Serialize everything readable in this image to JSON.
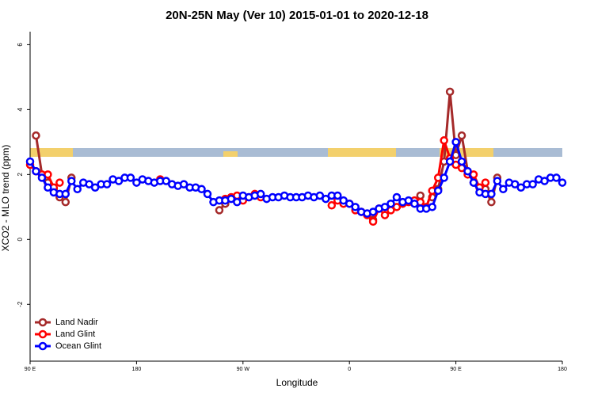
{
  "chart_data": {
    "type": "line",
    "title": "20N-25N May (Ver 10)   2015-01-01 to 2020-12-18",
    "x_label": "Longitude",
    "y_label": "XCO2 - MLO trend (ppm)",
    "xlim": [
      90,
      540
    ],
    "ylim": [
      -3.75,
      6.4
    ],
    "xticks": [
      {
        "value": 90,
        "label": "90 E"
      },
      180,
      {
        "value": 270,
        "label": "90 W"
      },
      {
        "value": 360,
        "label": "0"
      },
      {
        "value": 450,
        "label": "90 E"
      },
      {
        "value": 540,
        "label": "180"
      }
    ],
    "yticks": [
      -2,
      0,
      2,
      4,
      6
    ],
    "legend": "bottom-left",
    "x": [
      90,
      95,
      100,
      105,
      110,
      115,
      120,
      125,
      130,
      135,
      140,
      145,
      150,
      155,
      160,
      165,
      170,
      175,
      180,
      185,
      190,
      195,
      200,
      205,
      210,
      215,
      220,
      225,
      230,
      235,
      240,
      245,
      250,
      255,
      260,
      265,
      270,
      275,
      280,
      285,
      290,
      295,
      300,
      305,
      310,
      315,
      320,
      325,
      330,
      335,
      340,
      345,
      350,
      355,
      360,
      365,
      370,
      375,
      380,
      385,
      390,
      395,
      400,
      405,
      410,
      415,
      420,
      425,
      430,
      435,
      440,
      445,
      450,
      455,
      460,
      465,
      470,
      475,
      480,
      485,
      490,
      495,
      500,
      505,
      510,
      515,
      520,
      525,
      530,
      535,
      540
    ],
    "series": [
      {
        "name": "Land Nadir",
        "color": "#a52a2a",
        "values": [
          null,
          3.2,
          2.0,
          1.75,
          1.55,
          1.3,
          1.15,
          1.9,
          null,
          null,
          null,
          null,
          null,
          null,
          null,
          null,
          null,
          null,
          null,
          null,
          null,
          null,
          null,
          null,
          null,
          null,
          null,
          null,
          null,
          null,
          null,
          null,
          0.9,
          1.1,
          null,
          null,
          null,
          null,
          null,
          null,
          null,
          null,
          null,
          null,
          null,
          null,
          null,
          null,
          null,
          null,
          null,
          null,
          null,
          null,
          null,
          null,
          null,
          null,
          0.6,
          null,
          null,
          null,
          null,
          null,
          null,
          null,
          1.35,
          null,
          1.3,
          1.55,
          2.4,
          4.55,
          2.6,
          3.2,
          2.1,
          1.75,
          1.6,
          1.55,
          1.15,
          1.9,
          null,
          null,
          null,
          null,
          null,
          null,
          null,
          null,
          null,
          null,
          null
        ]
      },
      {
        "name": "Land Glint",
        "color": "#ff0000",
        "values": [
          2.3,
          2.1,
          2.0,
          2.0,
          1.6,
          1.75,
          null,
          null,
          null,
          null,
          null,
          null,
          null,
          null,
          null,
          null,
          null,
          null,
          null,
          null,
          null,
          null,
          1.85,
          null,
          null,
          null,
          null,
          null,
          null,
          null,
          null,
          null,
          null,
          1.25,
          1.3,
          1.35,
          1.2,
          1.3,
          1.4,
          1.3,
          null,
          null,
          null,
          null,
          null,
          null,
          null,
          null,
          null,
          null,
          null,
          1.05,
          1.2,
          1.1,
          1.1,
          0.9,
          0.85,
          0.75,
          0.55,
          0.95,
          0.75,
          0.9,
          1.0,
          1.1,
          1.15,
          1.2,
          1.15,
          1.0,
          1.5,
          1.9,
          3.05,
          2.5,
          2.3,
          2.2,
          2.0,
          2.0,
          1.6,
          1.75,
          null,
          null,
          null,
          null,
          null,
          null,
          null,
          null,
          null,
          null,
          null,
          null,
          null
        ]
      },
      {
        "name": "Ocean Glint",
        "color": "#0000ff",
        "values": [
          2.4,
          2.1,
          1.9,
          1.6,
          1.45,
          1.4,
          1.4,
          1.8,
          1.55,
          1.75,
          1.7,
          1.6,
          1.7,
          1.7,
          1.85,
          1.8,
          1.9,
          1.9,
          1.75,
          1.85,
          1.8,
          1.75,
          1.8,
          1.8,
          1.7,
          1.65,
          1.7,
          1.6,
          1.6,
          1.55,
          1.4,
          1.15,
          1.2,
          1.2,
          1.25,
          1.15,
          1.35,
          1.3,
          1.35,
          1.4,
          1.25,
          1.3,
          1.3,
          1.35,
          1.3,
          1.3,
          1.3,
          1.35,
          1.3,
          1.35,
          1.25,
          1.35,
          1.35,
          1.2,
          1.1,
          1.0,
          0.85,
          0.8,
          0.85,
          0.95,
          1.0,
          1.1,
          1.3,
          1.15,
          1.2,
          1.1,
          0.95,
          0.95,
          1.0,
          1.5,
          1.9,
          2.4,
          3.0,
          2.4,
          2.1,
          1.75,
          1.45,
          1.4,
          1.4,
          1.8,
          1.55,
          1.75,
          1.7,
          1.6,
          1.7,
          1.7,
          1.85,
          1.8,
          1.9,
          1.9,
          1.75
        ]
      }
    ]
  }
}
